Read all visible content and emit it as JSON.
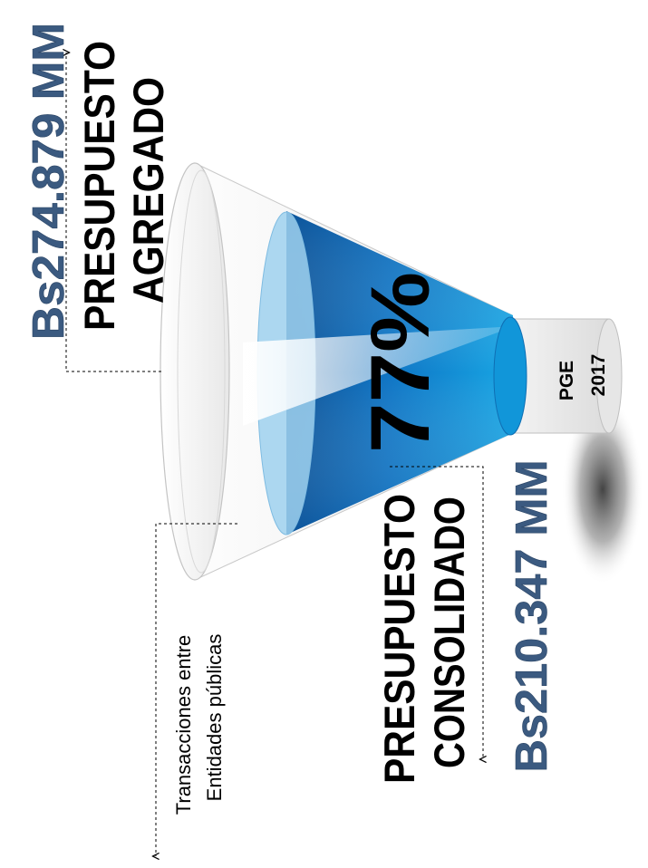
{
  "aggregate": {
    "amount": "Bs274.879 MM",
    "label_line1": "PRESUPUESTO",
    "label_line2": "AGREGADO"
  },
  "consolidated": {
    "amount": "Bs210.347 MM",
    "label_line1": "PRESUPUESTO",
    "label_line2": "CONSOLIDADO"
  },
  "share": {
    "percent": "77%",
    "value": 0.77
  },
  "transfers": {
    "line1": "Transacciones entre",
    "line2": "Entidades públicas"
  },
  "outlet": {
    "line1": "PGE",
    "line2": "2017"
  },
  "colors": {
    "amount_text": "#3b5a80",
    "funnel_blue_dark": "#0b5ea8",
    "funnel_blue_light": "#1aa9e6",
    "funnel_glass": "#eeeeee"
  }
}
